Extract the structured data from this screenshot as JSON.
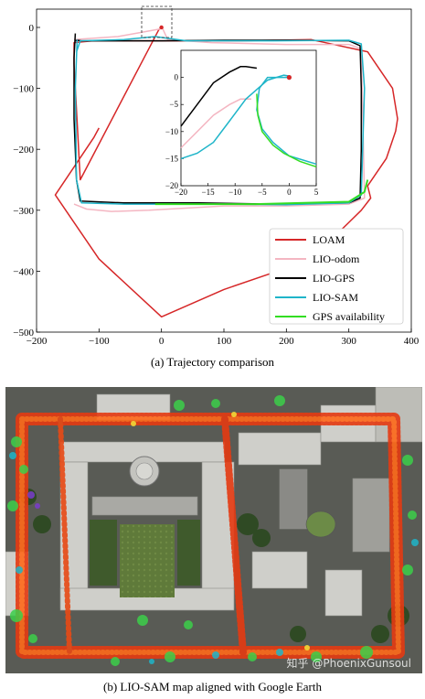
{
  "figure_a": {
    "caption": "(a) Trajectory comparison",
    "chart_data": {
      "type": "line",
      "xlim": [
        -200,
        400
      ],
      "ylim": [
        -500,
        30
      ],
      "x_ticks": [
        -200,
        -100,
        0,
        100,
        200,
        300,
        400
      ],
      "y_ticks": [
        0,
        -100,
        -200,
        -300,
        -400,
        -500
      ],
      "grid": false,
      "legend_position": "lower-right",
      "colors": {
        "LOAM": "#d62728",
        "LIO-odom": "#f4b6c2",
        "LIO-GPS": "#000000",
        "LIO-SAM": "#1fb5c9",
        "GPS availability": "#33dd22"
      },
      "series": [
        {
          "name": "LOAM",
          "x": [
            -100,
            -108,
            -170,
            -100,
            0,
            100,
            200,
            260,
            300,
            320,
            335,
            330,
            360,
            375,
            378,
            370,
            330,
            240,
            130,
            0,
            -60,
            -110,
            -140,
            -140,
            -130,
            -5,
            0
          ],
          "y": [
            -165,
            -180,
            -275,
            -380,
            -475,
            -430,
            -395,
            -360,
            -320,
            -300,
            -280,
            -260,
            -215,
            -170,
            -150,
            -100,
            -40,
            -20,
            -22,
            -22,
            -22,
            -22,
            -25,
            -60,
            -250,
            -5,
            2
          ]
        },
        {
          "name": "LIO-odom",
          "x": [
            -140,
            -70,
            -5,
            0,
            0,
            10,
            80,
            200,
            300,
            320,
            325,
            300,
            200,
            100,
            -20,
            -80,
            -120,
            -140
          ],
          "y": [
            -20,
            -15,
            -3,
            -2,
            2,
            -20,
            -25,
            -28,
            -28,
            -35,
            -280,
            -290,
            -293,
            -293,
            -300,
            -302,
            -298,
            -290
          ]
        },
        {
          "name": "LIO-GPS",
          "x": [
            -138,
            -140,
            -140,
            -136,
            -130,
            -60,
            0,
            60,
            180,
            300,
            318,
            320,
            320,
            318,
            300,
            200,
            100,
            0,
            -100,
            -128,
            -135,
            -138,
            -138
          ],
          "y": [
            -10,
            -50,
            -150,
            -250,
            -285,
            -288,
            -288,
            -288,
            -290,
            -288,
            -280,
            -200,
            -100,
            -30,
            -22,
            -21,
            -21,
            -22,
            -22,
            -22,
            -21,
            -22,
            -22
          ]
        },
        {
          "name": "LIO-SAM",
          "x": [
            -135,
            -138,
            -136,
            -128,
            -60,
            0,
            80,
            200,
            300,
            320,
            325,
            320,
            300,
            180,
            40,
            -10,
            -60,
            -130,
            -136
          ],
          "y": [
            -20,
            -100,
            -250,
            -288,
            -290,
            -290,
            -290,
            -291,
            -288,
            -275,
            -100,
            -27,
            -21,
            -22,
            -22,
            -15,
            -20,
            -22,
            -40
          ]
        },
        {
          "name": "GPS availability",
          "x": [
            -10,
            150,
            300,
            325,
            330
          ],
          "y": [
            -290,
            -290,
            -286,
            -270,
            -250
          ]
        }
      ],
      "inset": {
        "xlim": [
          -20,
          5
        ],
        "ylim": [
          -20,
          5
        ],
        "x_ticks": [
          -20,
          -15,
          -10,
          -5,
          0,
          5
        ],
        "y_ticks": [
          0,
          -5,
          -10,
          -15,
          -20
        ],
        "series": [
          {
            "name": "LIO-GPS",
            "x": [
              -20,
              -17,
              -14,
              -11,
              -9,
              -8,
              -6
            ],
            "y": [
              -9,
              -5,
              -1,
              1,
              2,
              2,
              1.7
            ]
          },
          {
            "name": "LIO-odom",
            "x": [
              -20,
              -17,
              -14,
              -11,
              -9,
              -7
            ],
            "y": [
              -13,
              -10,
              -7,
              -5,
              -4,
              -4
            ]
          },
          {
            "name": "LIO-SAM",
            "x": [
              -20,
              -17,
              -14,
              -11,
              -8,
              -4,
              -1,
              0.3
            ],
            "y": [
              -15,
              -14,
              -12,
              -8,
              -4,
              -0.5,
              0.4,
              0.2
            ]
          },
          {
            "name": "LIO-SAM",
            "x": [
              0,
              -4,
              -5.5,
              -6,
              -5,
              -3,
              0,
              5
            ],
            "y": [
              0,
              0,
              -2,
              -6,
              -9.5,
              -12,
              -14.5,
              -16
            ]
          },
          {
            "name": "GPS availability",
            "x": [
              -6,
              -5.8,
              -5,
              -3,
              -1,
              2,
              5
            ],
            "y": [
              -3,
              -7,
              -10,
              -12.5,
              -14,
              -15.5,
              -16.5
            ]
          }
        ],
        "start_marker": {
          "x": 0,
          "y": 0,
          "color": "#d62728"
        }
      }
    }
  },
  "figure_b": {
    "caption": "(b) LIO-SAM map aligned with Google Earth",
    "watermark": "知乎 @PhoenixGunsoul"
  }
}
